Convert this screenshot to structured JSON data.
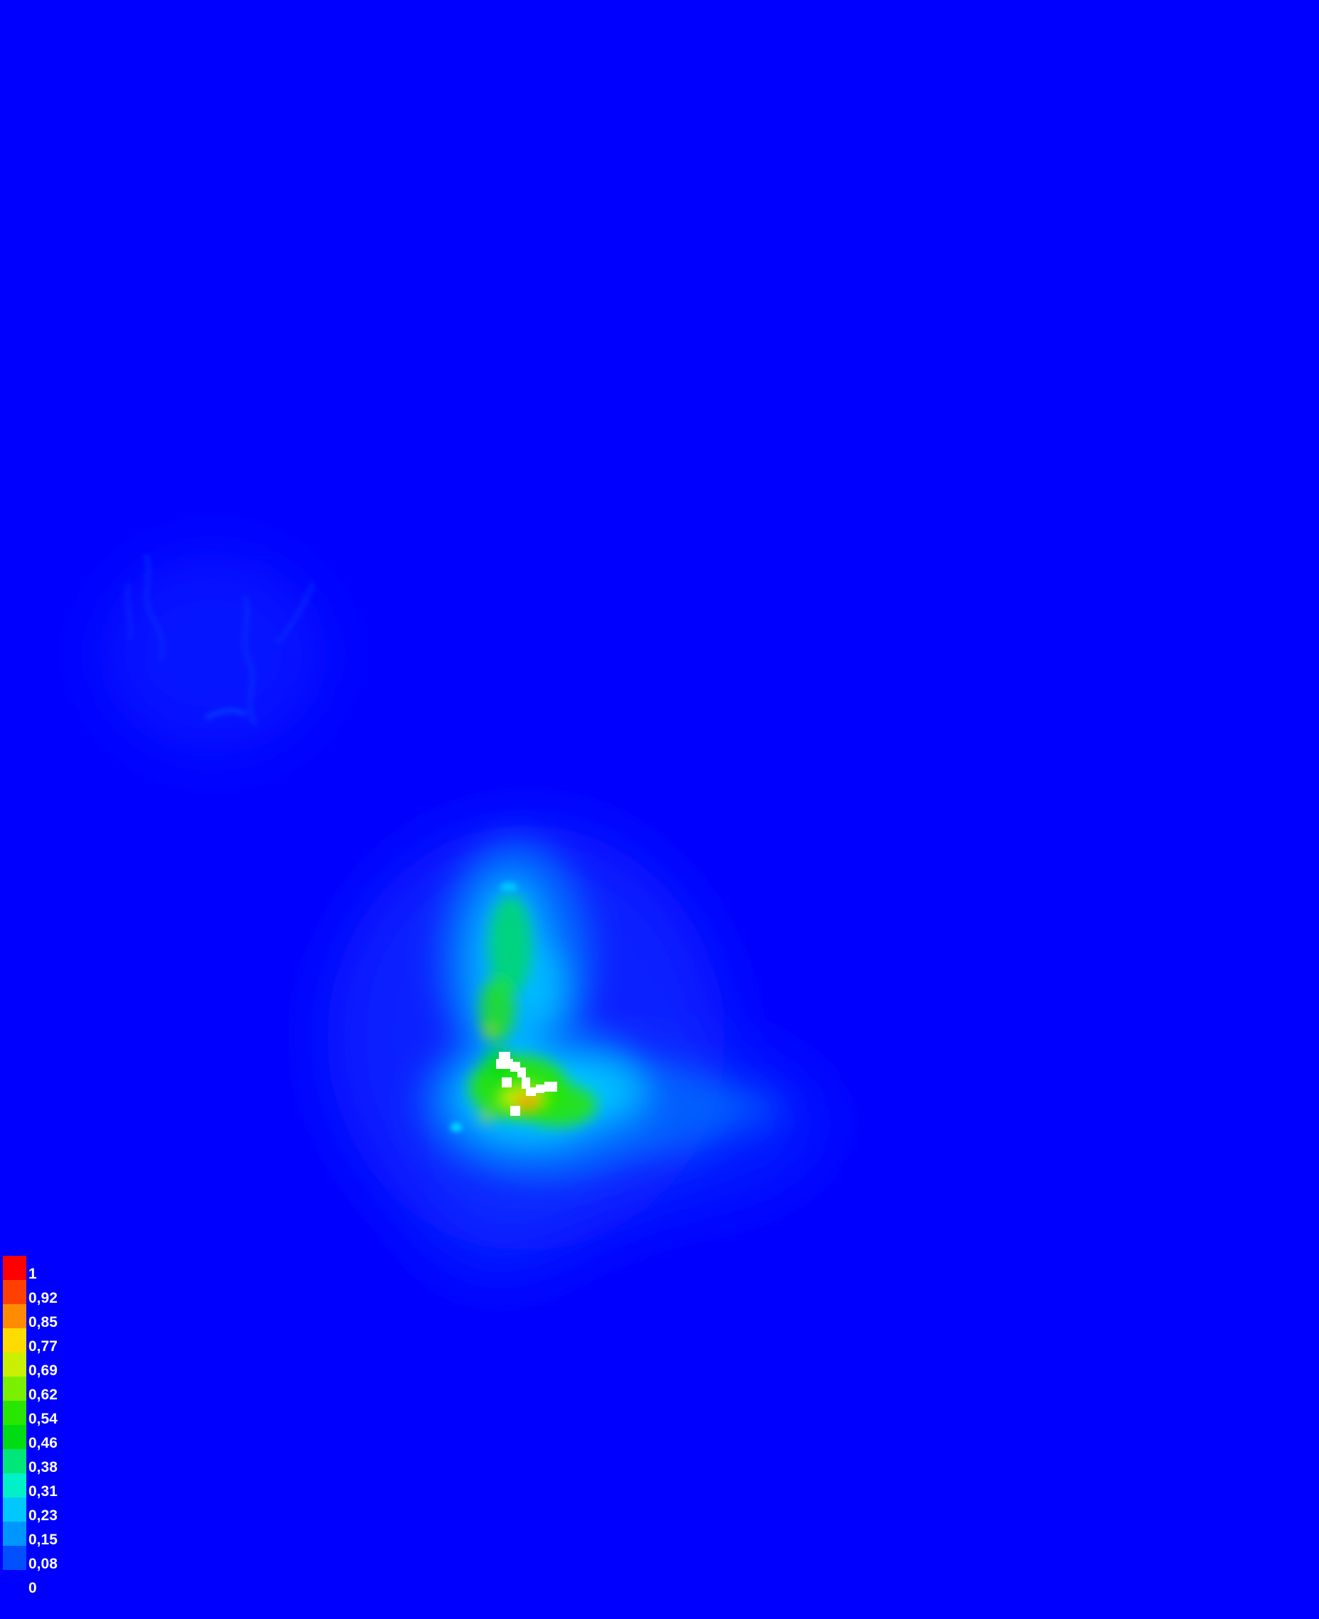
{
  "map": {
    "background_color": "#0000ff",
    "hotspot_color": "#ffffff"
  },
  "legend": {
    "items": [
      {
        "label": "1",
        "color": "#ff0000"
      },
      {
        "label": "0,92",
        "color": "#ff4000"
      },
      {
        "label": "0,85",
        "color": "#ff8c00"
      },
      {
        "label": "0,77",
        "color": "#ffdc00"
      },
      {
        "label": "0,69",
        "color": "#c8f000"
      },
      {
        "label": "0,62",
        "color": "#78f000"
      },
      {
        "label": "0,54",
        "color": "#28e600"
      },
      {
        "label": "0,46",
        "color": "#00dc14"
      },
      {
        "label": "0,38",
        "color": "#00e678"
      },
      {
        "label": "0,31",
        "color": "#00f0c8"
      },
      {
        "label": "0,23",
        "color": "#00c8ff"
      },
      {
        "label": "0,15",
        "color": "#0096ff"
      },
      {
        "label": "0,08",
        "color": "#0050ff"
      },
      {
        "label": "0",
        "color": "#0000ff"
      }
    ]
  }
}
